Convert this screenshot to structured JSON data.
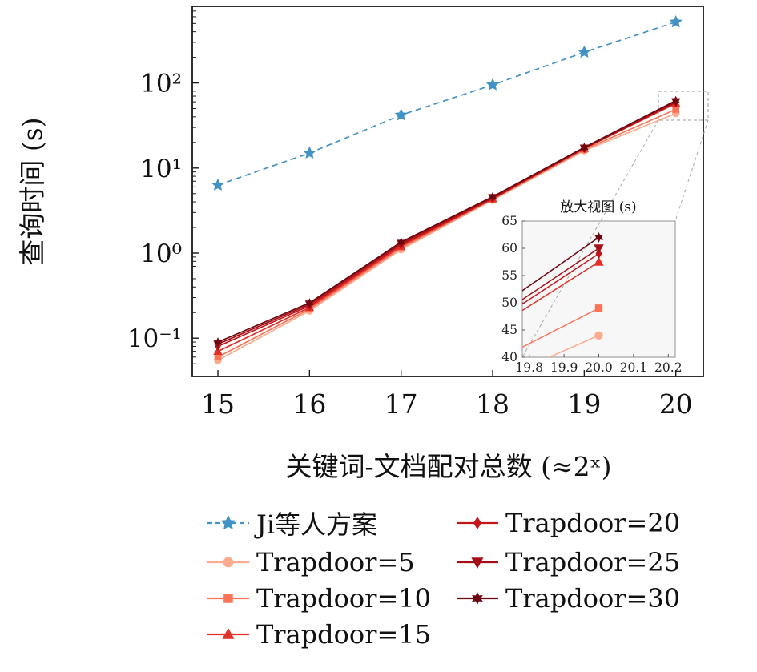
{
  "chart_data": {
    "type": "line",
    "x": [
      15,
      16,
      17,
      18,
      19,
      20
    ],
    "xlabel": "关键词-文档配对总数 (≈2ˣ)",
    "ylabel": "查询时间 (s)",
    "y_scale": "log",
    "xlim": [
      14.72,
      20.3
    ],
    "ylim_log": [
      -1.45,
      2.9
    ],
    "x_ticks": [
      15,
      16,
      17,
      18,
      19,
      20
    ],
    "y_ticks": [
      {
        "label": "10²",
        "value": 100
      },
      {
        "label": "10¹",
        "value": 10
      },
      {
        "label": "10⁰",
        "value": 1
      },
      {
        "label": "10⁻¹",
        "value": 0.1
      }
    ],
    "legend_position": "bottom",
    "grid": false,
    "series": [
      {
        "label": "Ji等人方案",
        "color": "#4292c6",
        "marker": "star",
        "line": "dashed",
        "values": [
          6.3,
          15,
          42,
          95,
          230,
          520
        ]
      },
      {
        "label": "Trapdoor=5",
        "color": "#fcab8f",
        "marker": "circle",
        "line": "solid",
        "values": [
          0.055,
          0.21,
          1.1,
          4.2,
          16.0,
          44
        ]
      },
      {
        "label": "Trapdoor=10",
        "color": "#fb7456",
        "marker": "square",
        "line": "solid",
        "values": [
          0.06,
          0.22,
          1.15,
          4.3,
          16.5,
          49
        ]
      },
      {
        "label": "Trapdoor=15",
        "color": "#e23127",
        "marker": "triangle-up",
        "line": "solid",
        "values": [
          0.07,
          0.23,
          1.2,
          4.35,
          17.0,
          57.5
        ]
      },
      {
        "label": "Trapdoor=20",
        "color": "#c2161b",
        "marker": "diamond",
        "line": "solid",
        "values": [
          0.08,
          0.24,
          1.25,
          4.4,
          17.0,
          59
        ]
      },
      {
        "label": "Trapdoor=25",
        "color": "#a50f15",
        "marker": "triangle-down",
        "line": "solid",
        "values": [
          0.085,
          0.25,
          1.3,
          4.5,
          17.2,
          60
        ]
      },
      {
        "label": "Trapdoor=30",
        "color": "#6b0711",
        "marker": "star6",
        "line": "solid",
        "values": [
          0.09,
          0.26,
          1.35,
          4.6,
          17.5,
          62
        ]
      }
    ],
    "inset": {
      "title": "放大视图 (s)",
      "xlim": [
        19.78,
        20.22
      ],
      "ylim": [
        40,
        65
      ],
      "x_ticks": [
        19.8,
        19.9,
        20.0,
        20.1,
        20.2
      ],
      "y_ticks": [
        40,
        45,
        50,
        55,
        60,
        65
      ]
    }
  }
}
